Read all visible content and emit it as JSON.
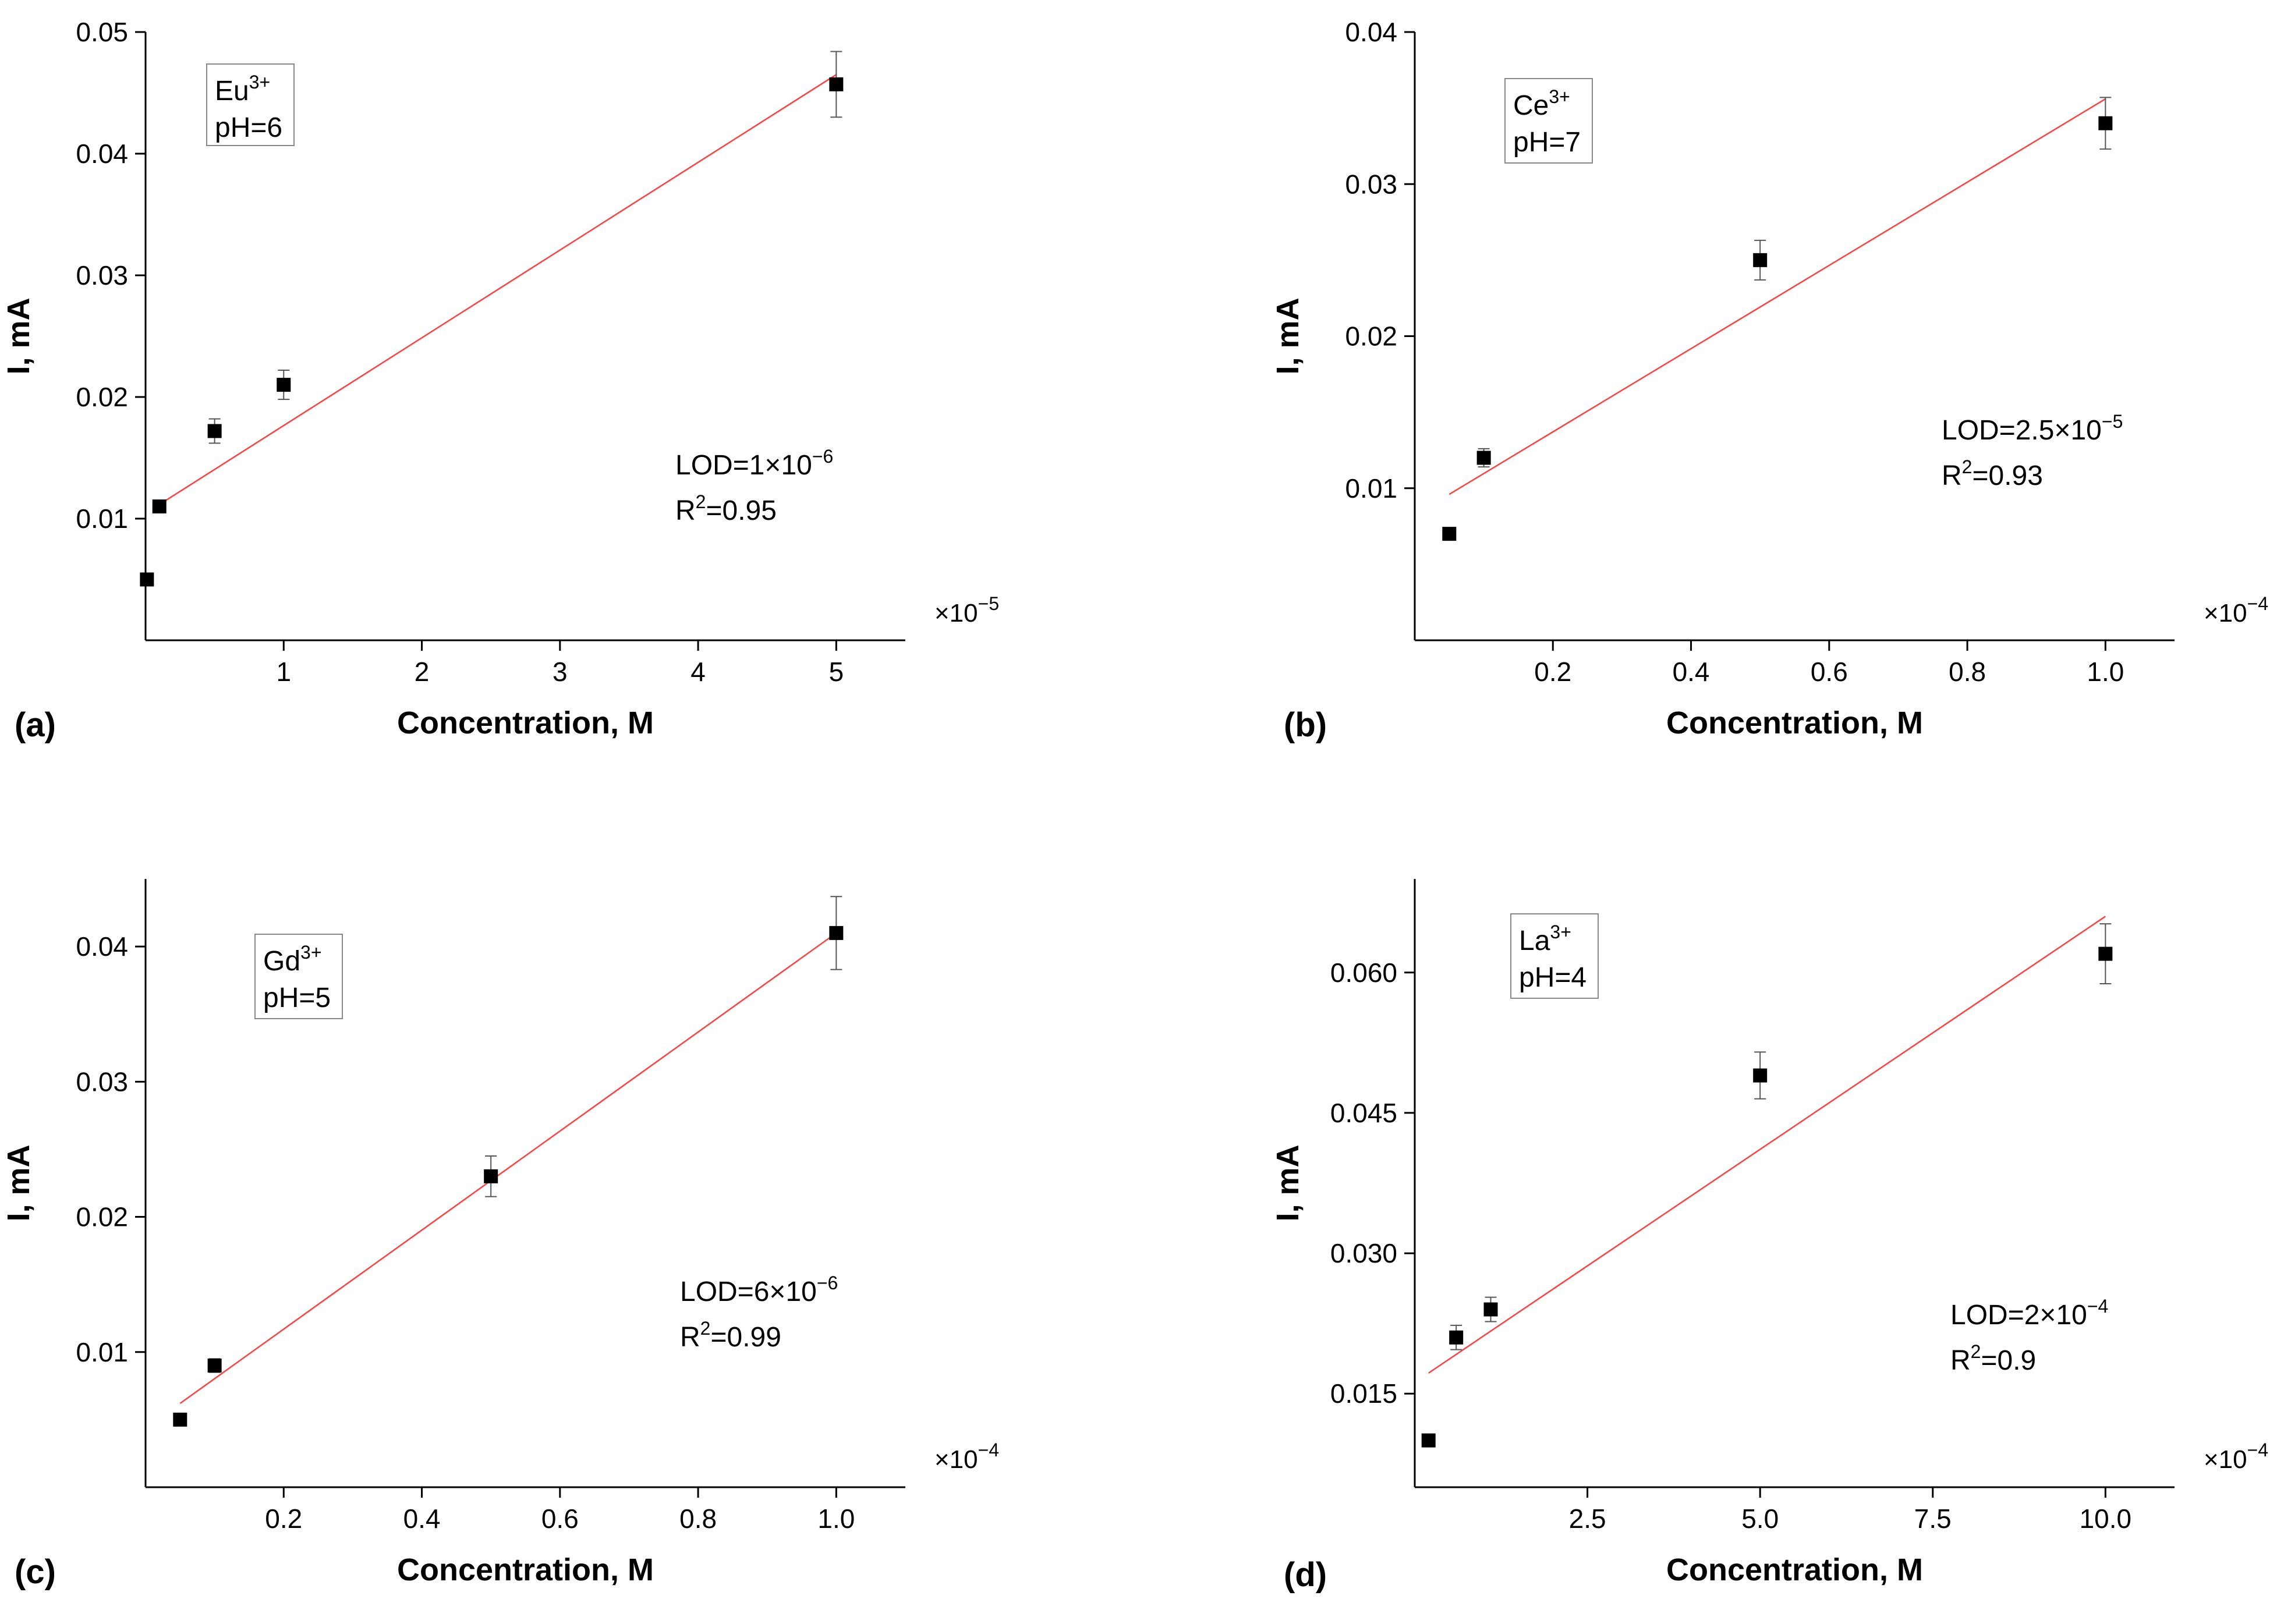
{
  "chart_data": [
    {
      "type": "scatter",
      "panel": "(a)",
      "ion": "Eu",
      "ion_charge": "3+",
      "ph": "pH=6",
      "lod_base": "LOD=1×10",
      "lod_exp": "−6",
      "r2_pre": "R",
      "r2_sup": "2",
      "r2_post": "=0.95",
      "multiplier_base": "×10",
      "multiplier_exp": "−5",
      "xlabel": "Concentration, M",
      "ylabel": "I, mA",
      "xlim": [
        0,
        5.5
      ],
      "ylim": [
        0,
        0.05
      ],
      "xticks": [
        1,
        2,
        3,
        4,
        5
      ],
      "xtick_labels": [
        "1",
        "2",
        "3",
        "4",
        "5"
      ],
      "yticks": [
        0.01,
        0.02,
        0.03,
        0.04,
        0.05
      ],
      "ytick_labels": [
        "0.01",
        "0.02",
        "0.03",
        "0.04",
        "0.05"
      ],
      "x": [
        0.01,
        0.1,
        0.5,
        1.0,
        5.0
      ],
      "y": [
        0.005,
        0.011,
        0.0172,
        0.021,
        0.0457
      ],
      "err": [
        0.0003,
        0.0005,
        0.001,
        0.0012,
        0.0027
      ],
      "fit_x": [
        0.05,
        5.0
      ],
      "fit_y": [
        0.0108,
        0.0465
      ],
      "accent_color": "#ff4040"
    },
    {
      "type": "scatter",
      "panel": "(b)",
      "ion": "Ce",
      "ion_charge": "3+",
      "ph": "pH=7",
      "lod_base": "LOD=2.5×10",
      "lod_exp": "−5",
      "r2_pre": "R",
      "r2_sup": "2",
      "r2_post": "=0.93",
      "multiplier_base": "×10",
      "multiplier_exp": "−4",
      "xlabel": "Concentration, M",
      "ylabel": "I, mA",
      "xlim": [
        0,
        1.1
      ],
      "ylim": [
        0,
        0.04
      ],
      "xticks": [
        0.2,
        0.4,
        0.6,
        0.8,
        1.0
      ],
      "xtick_labels": [
        "0.2",
        "0.4",
        "0.6",
        "0.8",
        "1.0"
      ],
      "yticks": [
        0.01,
        0.02,
        0.03,
        0.04
      ],
      "ytick_labels": [
        "0.01",
        "0.02",
        "0.03",
        "0.04"
      ],
      "x": [
        0.05,
        0.1,
        0.5,
        1.0
      ],
      "y": [
        0.007,
        0.012,
        0.025,
        0.034
      ],
      "err": [
        0.0002,
        0.0006,
        0.0013,
        0.0017
      ],
      "fit_x": [
        0.05,
        1.0
      ],
      "fit_y": [
        0.0096,
        0.0356
      ],
      "accent_color": "#ff4040"
    },
    {
      "type": "scatter",
      "panel": "(c)",
      "ion": "Gd",
      "ion_charge": "3+",
      "ph": "pH=5",
      "lod_base": "LOD=6×10",
      "lod_exp": "−6",
      "r2_pre": "R",
      "r2_sup": "2",
      "r2_post": "=0.99",
      "multiplier_base": "×10",
      "multiplier_exp": "−4",
      "xlabel": "Concentration, M",
      "ylabel": "I, mA",
      "xlim": [
        0,
        1.1
      ],
      "ylim": [
        0,
        0.045
      ],
      "xticks": [
        0.2,
        0.4,
        0.6,
        0.8,
        1.0
      ],
      "xtick_labels": [
        "0.2",
        "0.4",
        "0.6",
        "0.8",
        "1.0"
      ],
      "yticks": [
        0.01,
        0.02,
        0.03,
        0.04
      ],
      "ytick_labels": [
        "0.01",
        "0.02",
        "0.03",
        "0.04"
      ],
      "x": [
        0.05,
        0.1,
        0.5,
        1.0
      ],
      "y": [
        0.005,
        0.009,
        0.023,
        0.041
      ],
      "err": [
        0.0002,
        0.0005,
        0.0015,
        0.0027
      ],
      "fit_x": [
        0.05,
        1.0
      ],
      "fit_y": [
        0.0062,
        0.041
      ],
      "accent_color": "#ff4040"
    },
    {
      "type": "scatter",
      "panel": "(d)",
      "ion": "La",
      "ion_charge": "3+",
      "ph": "pH=4",
      "lod_base": "LOD=2×10",
      "lod_exp": "−4",
      "r2_pre": "R",
      "r2_sup": "2",
      "r2_post": "=0.9",
      "multiplier_base": "×10",
      "multiplier_exp": "−4",
      "xlabel": "Concentration, M",
      "ylabel": "I, mA",
      "xlim": [
        0,
        11
      ],
      "ylim": [
        0.005,
        0.07
      ],
      "xticks": [
        2.5,
        5.0,
        7.5,
        10.0
      ],
      "xtick_labels": [
        "2.5",
        "5.0",
        "7.5",
        "10.0"
      ],
      "yticks": [
        0.015,
        0.03,
        0.045,
        0.06
      ],
      "ytick_labels": [
        "0.015",
        "0.030",
        "0.045",
        "0.060"
      ],
      "x": [
        0.2,
        0.6,
        1.1,
        5.0,
        10.0
      ],
      "y": [
        0.01,
        0.021,
        0.024,
        0.049,
        0.062
      ],
      "err": [
        0.0003,
        0.0013,
        0.0013,
        0.0025,
        0.0032
      ],
      "fit_x": [
        0.2,
        10.0
      ],
      "fit_y": [
        0.0172,
        0.066
      ],
      "accent_color": "#ff4040"
    }
  ]
}
